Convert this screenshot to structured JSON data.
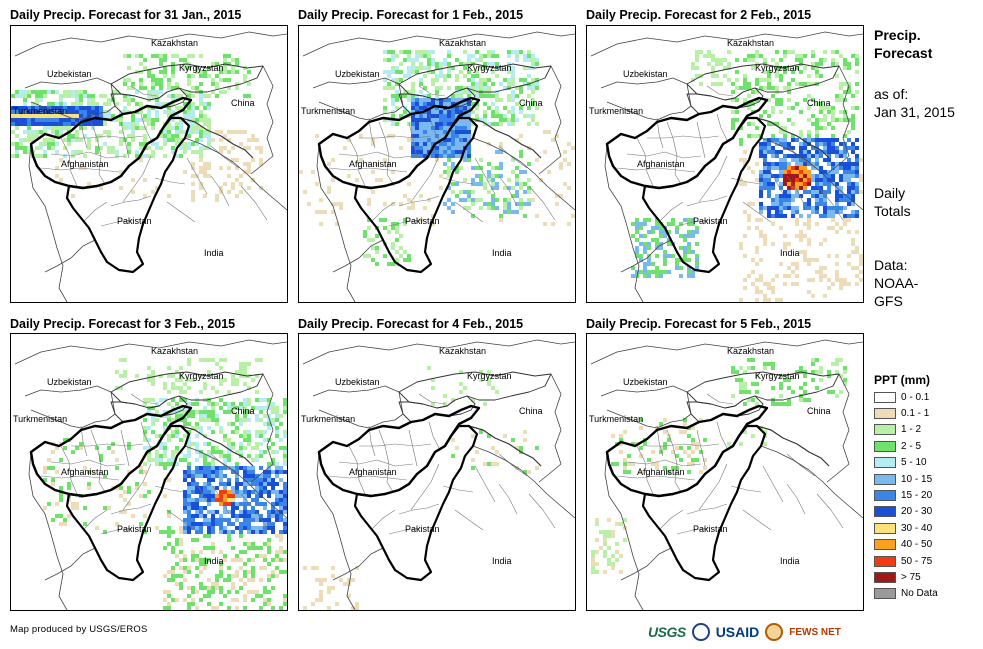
{
  "panels": [
    {
      "title": "Daily Precip. Forecast for 31 Jan., 2015",
      "day": 0
    },
    {
      "title": "Daily Precip. Forecast for 1 Feb., 2015",
      "day": 1
    },
    {
      "title": "Daily Precip. Forecast for 2 Feb., 2015",
      "day": 2
    },
    {
      "title": "Daily Precip. Forecast for 3 Feb., 2015",
      "day": 3
    },
    {
      "title": "Daily Precip. Forecast for 4 Feb., 2015",
      "day": 4
    },
    {
      "title": "Daily Precip. Forecast for 5 Feb., 2015",
      "day": 5
    }
  ],
  "map_labels": {
    "kazakhstan": "Kazakhstan",
    "uzbekistan": "Uzbekistan",
    "kyrgyzstan": "Kyrgyzstan",
    "turkmenistan": "Turkmenistan",
    "china": "China",
    "afghanistan": "Afghanistan",
    "pakistan": "Pakistan",
    "india": "India"
  },
  "sidebar": {
    "title_line1": "Precip.",
    "title_line2": "Forecast",
    "asof_label": "as of:",
    "asof_date": "Jan 31, 2015",
    "daily_line1": "Daily",
    "daily_line2": "Totals",
    "data_line1": "Data:",
    "data_line2": "NOAA-",
    "data_line3": "GFS"
  },
  "legend": {
    "title": "PPT (mm)",
    "items": [
      {
        "label": "0 - 0.1",
        "color": "#ffffff"
      },
      {
        "label": "0.1 - 1",
        "color": "#ecdcb8"
      },
      {
        "label": "1 - 2",
        "color": "#b8f0a8"
      },
      {
        "label": "2 - 5",
        "color": "#6ee26a"
      },
      {
        "label": "5 - 10",
        "color": "#b4ecf2"
      },
      {
        "label": "10 - 15",
        "color": "#7ab8f0"
      },
      {
        "label": "15 - 20",
        "color": "#3a86e8"
      },
      {
        "label": "20 - 30",
        "color": "#1a50d8"
      },
      {
        "label": "30 - 40",
        "color": "#fce07a"
      },
      {
        "label": "40 - 50",
        "color": "#fca020"
      },
      {
        "label": "50 - 75",
        "color": "#f03c10"
      },
      {
        "label": "> 75",
        "color": "#a01818"
      },
      {
        "label": "No Data",
        "color": "#9a9a9a"
      }
    ]
  },
  "footer": {
    "credit": "Map produced by USGS/EROS",
    "logo_usgs": "USGS",
    "logo_usaid": "USAID",
    "logo_fews": "FEWS NET"
  }
}
